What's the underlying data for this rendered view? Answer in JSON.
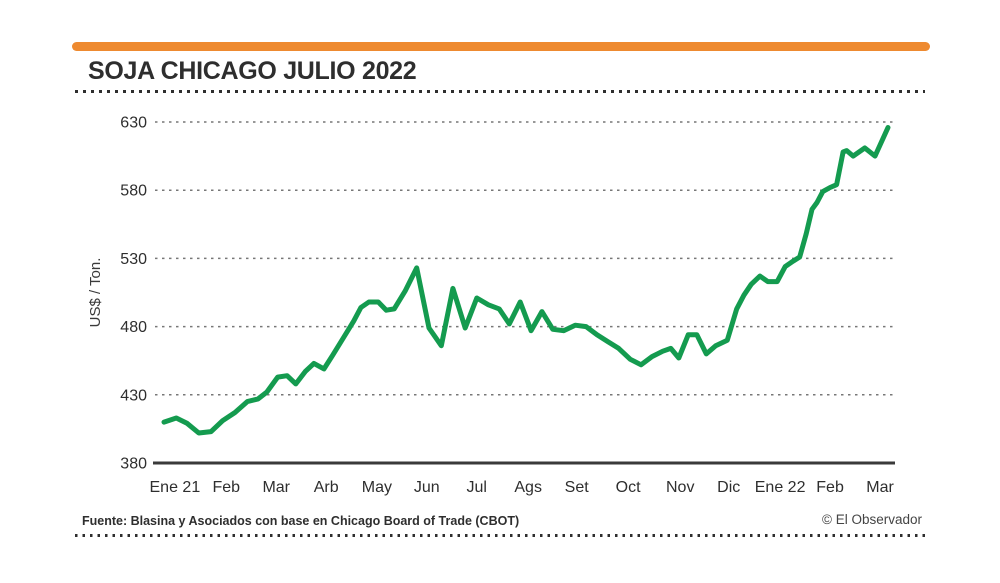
{
  "header": {
    "title": "SOJA CHICAGO JULIO 2022"
  },
  "footer": {
    "source": "Fuente: Blasina y Asociados con base en Chicago Board of Trade (CBOT)",
    "credit": "© El Observador"
  },
  "colors": {
    "accent_orange": "#EE8A30",
    "line_green": "#149B4F",
    "text_dark": "#2E2E2E",
    "grid_gray": "#777777",
    "axis_dark": "#3A3A3A"
  },
  "chart_data": {
    "type": "line",
    "title": "SOJA CHICAGO JULIO 2022",
    "xlabel": "",
    "ylabel": "US$ / Ton.",
    "ylim": [
      380,
      630
    ],
    "yticks": [
      380,
      430,
      480,
      530,
      580,
      630
    ],
    "grid": "horizontal dashed, solid baseline at 380",
    "legend": "none",
    "x_ticks": [
      {
        "label": "Ene 21",
        "f": 0.015
      },
      {
        "label": "Feb",
        "f": 0.086
      },
      {
        "label": "Mar",
        "f": 0.155
      },
      {
        "label": "Arb",
        "f": 0.224
      },
      {
        "label": "May",
        "f": 0.294
      },
      {
        "label": "Jun",
        "f": 0.363
      },
      {
        "label": "Jul",
        "f": 0.432
      },
      {
        "label": "Ags",
        "f": 0.503
      },
      {
        "label": "Set",
        "f": 0.57
      },
      {
        "label": "Oct",
        "f": 0.641
      },
      {
        "label": "Nov",
        "f": 0.713
      },
      {
        "label": "Dic",
        "f": 0.78
      },
      {
        "label": "Ene 22",
        "f": 0.851
      },
      {
        "label": "Feb",
        "f": 0.92
      },
      {
        "label": "Mar",
        "f": 0.989
      }
    ],
    "series": [
      {
        "name": "Soja Chicago julio 2022 (US$/Ton.)",
        "points": [
          [
            0.0,
            410
          ],
          [
            0.017,
            413
          ],
          [
            0.032,
            409
          ],
          [
            0.048,
            402
          ],
          [
            0.065,
            403
          ],
          [
            0.081,
            411
          ],
          [
            0.098,
            417
          ],
          [
            0.115,
            425
          ],
          [
            0.13,
            427
          ],
          [
            0.142,
            432
          ],
          [
            0.157,
            443
          ],
          [
            0.17,
            444
          ],
          [
            0.182,
            438
          ],
          [
            0.195,
            447
          ],
          [
            0.207,
            453
          ],
          [
            0.221,
            449
          ],
          [
            0.233,
            459
          ],
          [
            0.248,
            472
          ],
          [
            0.262,
            484
          ],
          [
            0.272,
            494
          ],
          [
            0.283,
            498
          ],
          [
            0.296,
            498
          ],
          [
            0.307,
            492
          ],
          [
            0.318,
            493
          ],
          [
            0.333,
            506
          ],
          [
            0.349,
            523
          ],
          [
            0.366,
            479
          ],
          [
            0.383,
            466
          ],
          [
            0.399,
            508
          ],
          [
            0.416,
            479
          ],
          [
            0.432,
            501
          ],
          [
            0.448,
            496
          ],
          [
            0.463,
            493
          ],
          [
            0.477,
            482
          ],
          [
            0.492,
            498
          ],
          [
            0.507,
            477
          ],
          [
            0.522,
            491
          ],
          [
            0.537,
            478
          ],
          [
            0.552,
            477
          ],
          [
            0.568,
            481
          ],
          [
            0.583,
            480
          ],
          [
            0.598,
            474
          ],
          [
            0.613,
            469
          ],
          [
            0.628,
            464
          ],
          [
            0.644,
            456
          ],
          [
            0.659,
            452
          ],
          [
            0.674,
            458
          ],
          [
            0.689,
            462
          ],
          [
            0.7,
            464
          ],
          [
            0.711,
            457
          ],
          [
            0.724,
            474
          ],
          [
            0.736,
            474
          ],
          [
            0.749,
            460
          ],
          [
            0.762,
            466
          ],
          [
            0.778,
            470
          ],
          [
            0.791,
            493
          ],
          [
            0.801,
            503
          ],
          [
            0.811,
            511
          ],
          [
            0.823,
            517
          ],
          [
            0.834,
            513
          ],
          [
            0.847,
            513
          ],
          [
            0.858,
            524
          ],
          [
            0.869,
            528
          ],
          [
            0.878,
            531
          ],
          [
            0.887,
            548
          ],
          [
            0.895,
            566
          ],
          [
            0.902,
            571
          ],
          [
            0.91,
            579
          ],
          [
            0.92,
            582
          ],
          [
            0.929,
            584
          ],
          [
            0.938,
            608
          ],
          [
            0.943,
            609
          ],
          [
            0.952,
            605
          ],
          [
            0.968,
            611
          ],
          [
            0.982,
            605
          ],
          [
            1.0,
            626
          ]
        ]
      }
    ]
  }
}
